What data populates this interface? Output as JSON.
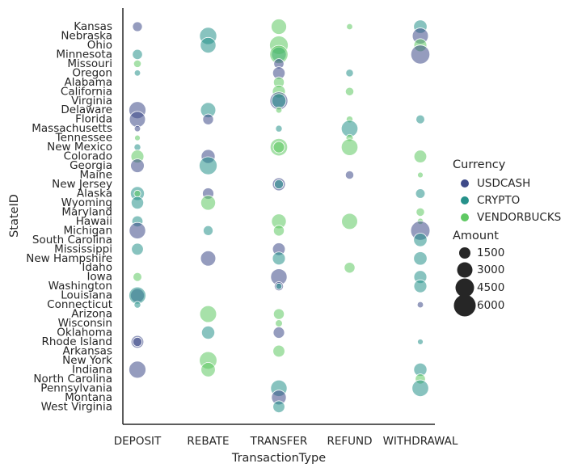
{
  "chart_data": {
    "type": "scatter",
    "xlabel": "TransactionType",
    "ylabel": "StateID",
    "categories_x": [
      "DEPOSIT",
      "REBATE",
      "TRANSFER",
      "REFUND",
      "WITHDRAWAL"
    ],
    "categories_y": [
      "Kansas",
      "Nebraska",
      "Ohio",
      "Minnesota",
      "Missouri",
      "Oregon",
      "Alabama",
      "California",
      "Virginia",
      "Delaware",
      "Florida",
      "Massachusetts",
      "Tennessee",
      "New Mexico",
      "Colorado",
      "Georgia",
      "Maine",
      "New Jersey",
      "Alaska",
      "Wyoming",
      "Maryland",
      "Hawaii",
      "Michigan",
      "South Carolina",
      "Mississippi",
      "New Hampshire",
      "Idaho",
      "Iowa",
      "Washington",
      "Louisiana",
      "Connecticut",
      "Arizona",
      "Wisconsin",
      "Oklahoma",
      "Rhode Island",
      "Arkansas",
      "New York",
      "Indiana",
      "North Carolina",
      "Pennsylvania",
      "Montana",
      "West Virginia"
    ],
    "legend": {
      "hue_title": "Currency",
      "hue": [
        {
          "name": "USDCASH",
          "color": "#3e4a89"
        },
        {
          "name": "CRYPTO",
          "color": "#26918a"
        },
        {
          "name": "VENDORBUCKS",
          "color": "#5fc963"
        }
      ],
      "size_title": "Amount",
      "sizes": [
        1500,
        3000,
        4500,
        6000
      ],
      "placement": "right"
    },
    "grid": false,
    "points": [
      {
        "x": "DEPOSIT",
        "y": "Kansas",
        "currency": "USDCASH",
        "amount": 1500
      },
      {
        "x": "DEPOSIT",
        "y": "Minnesota",
        "currency": "CRYPTO",
        "amount": 1600
      },
      {
        "x": "DEPOSIT",
        "y": "Missouri",
        "currency": "VENDORBUCKS",
        "amount": 900
      },
      {
        "x": "DEPOSIT",
        "y": "Oregon",
        "currency": "CRYPTO",
        "amount": 600
      },
      {
        "x": "DEPOSIT",
        "y": "Delaware",
        "currency": "USDCASH",
        "amount": 4500
      },
      {
        "x": "DEPOSIT",
        "y": "Florida",
        "currency": "USDCASH",
        "amount": 4000
      },
      {
        "x": "DEPOSIT",
        "y": "Massachusetts",
        "currency": "USDCASH",
        "amount": 600
      },
      {
        "x": "DEPOSIT",
        "y": "Tennessee",
        "currency": "VENDORBUCKS",
        "amount": 500
      },
      {
        "x": "DEPOSIT",
        "y": "New Mexico",
        "currency": "CRYPTO",
        "amount": 700
      },
      {
        "x": "DEPOSIT",
        "y": "Colorado",
        "currency": "VENDORBUCKS",
        "amount": 2600
      },
      {
        "x": "DEPOSIT",
        "y": "Georgia",
        "currency": "USDCASH",
        "amount": 2900
      },
      {
        "x": "DEPOSIT",
        "y": "Alaska",
        "currency": "CRYPTO",
        "amount": 3000
      },
      {
        "x": "DEPOSIT",
        "y": "Alaska",
        "currency": "VENDORBUCKS",
        "amount": 700
      },
      {
        "x": "DEPOSIT",
        "y": "Wyoming",
        "currency": "CRYPTO",
        "amount": 2400
      },
      {
        "x": "DEPOSIT",
        "y": "Hawaii",
        "currency": "CRYPTO",
        "amount": 1900
      },
      {
        "x": "DEPOSIT",
        "y": "Michigan",
        "currency": "USDCASH",
        "amount": 4200
      },
      {
        "x": "DEPOSIT",
        "y": "Mississippi",
        "currency": "CRYPTO",
        "amount": 2200
      },
      {
        "x": "DEPOSIT",
        "y": "Iowa",
        "currency": "VENDORBUCKS",
        "amount": 1200
      },
      {
        "x": "DEPOSIT",
        "y": "Louisiana",
        "currency": "USDCASH",
        "amount": 3000
      },
      {
        "x": "DEPOSIT",
        "y": "Louisiana",
        "currency": "CRYPTO",
        "amount": 4500
      },
      {
        "x": "DEPOSIT",
        "y": "Connecticut",
        "currency": "CRYPTO",
        "amount": 700
      },
      {
        "x": "DEPOSIT",
        "y": "Rhode Island",
        "currency": "USDCASH",
        "amount": 2500
      },
      {
        "x": "DEPOSIT",
        "y": "Rhode Island",
        "currency": "USDCASH",
        "amount": 1300
      },
      {
        "x": "DEPOSIT",
        "y": "Indiana",
        "currency": "USDCASH",
        "amount": 4500
      },
      {
        "x": "REBATE",
        "y": "Nebraska",
        "currency": "CRYPTO",
        "amount": 4600
      },
      {
        "x": "REBATE",
        "y": "Ohio",
        "currency": "CRYPTO",
        "amount": 3800
      },
      {
        "x": "REBATE",
        "y": "Delaware",
        "currency": "CRYPTO",
        "amount": 3600
      },
      {
        "x": "REBATE",
        "y": "Florida",
        "currency": "USDCASH",
        "amount": 1800
      },
      {
        "x": "REBATE",
        "y": "Colorado",
        "currency": "USDCASH",
        "amount": 3000
      },
      {
        "x": "REBATE",
        "y": "Georgia",
        "currency": "CRYPTO",
        "amount": 5000
      },
      {
        "x": "REBATE",
        "y": "Alaska",
        "currency": "USDCASH",
        "amount": 2000
      },
      {
        "x": "REBATE",
        "y": "Wyoming",
        "currency": "VENDORBUCKS",
        "amount": 3400
      },
      {
        "x": "REBATE",
        "y": "Michigan",
        "currency": "CRYPTO",
        "amount": 1500
      },
      {
        "x": "REBATE",
        "y": "New Hampshire",
        "currency": "USDCASH",
        "amount": 3600
      },
      {
        "x": "REBATE",
        "y": "Arizona",
        "currency": "VENDORBUCKS",
        "amount": 4400
      },
      {
        "x": "REBATE",
        "y": "Oklahoma",
        "currency": "CRYPTO",
        "amount": 2700
      },
      {
        "x": "REBATE",
        "y": "New York",
        "currency": "VENDORBUCKS",
        "amount": 4800
      },
      {
        "x": "REBATE",
        "y": "Indiana",
        "currency": "VENDORBUCKS",
        "amount": 3200
      },
      {
        "x": "TRANSFER",
        "y": "Kansas",
        "currency": "VENDORBUCKS",
        "amount": 3700
      },
      {
        "x": "TRANSFER",
        "y": "Ohio",
        "currency": "VENDORBUCKS",
        "amount": 5400
      },
      {
        "x": "TRANSFER",
        "y": "Minnesota",
        "currency": "CRYPTO",
        "amount": 3400
      },
      {
        "x": "TRANSFER",
        "y": "Minnesota",
        "currency": "VENDORBUCKS",
        "amount": 5200
      },
      {
        "x": "TRANSFER",
        "y": "Missouri",
        "currency": "USDCASH",
        "amount": 1600
      },
      {
        "x": "TRANSFER",
        "y": "Oregon",
        "currency": "USDCASH",
        "amount": 2400
      },
      {
        "x": "TRANSFER",
        "y": "Alabama",
        "currency": "VENDORBUCKS",
        "amount": 1800
      },
      {
        "x": "TRANSFER",
        "y": "California",
        "currency": "VENDORBUCKS",
        "amount": 2600
      },
      {
        "x": "TRANSFER",
        "y": "Virginia",
        "currency": "USDCASH",
        "amount": 5000
      },
      {
        "x": "TRANSFER",
        "y": "Virginia",
        "currency": "CRYPTO",
        "amount": 3200
      },
      {
        "x": "TRANSFER",
        "y": "Delaware",
        "currency": "VENDORBUCKS",
        "amount": 600
      },
      {
        "x": "TRANSFER",
        "y": "Massachusetts",
        "currency": "CRYPTO",
        "amount": 700
      },
      {
        "x": "TRANSFER",
        "y": "New Mexico",
        "currency": "VENDORBUCKS",
        "amount": 4700
      },
      {
        "x": "TRANSFER",
        "y": "New Mexico",
        "currency": "VENDORBUCKS",
        "amount": 2000
      },
      {
        "x": "TRANSFER",
        "y": "New Jersey",
        "currency": "USDCASH",
        "amount": 2600
      },
      {
        "x": "TRANSFER",
        "y": "New Jersey",
        "currency": "CRYPTO",
        "amount": 1300
      },
      {
        "x": "TRANSFER",
        "y": "Hawaii",
        "currency": "VENDORBUCKS",
        "amount": 3400
      },
      {
        "x": "TRANSFER",
        "y": "Michigan",
        "currency": "VENDORBUCKS",
        "amount": 1800
      },
      {
        "x": "TRANSFER",
        "y": "Mississippi",
        "currency": "USDCASH",
        "amount": 2500
      },
      {
        "x": "TRANSFER",
        "y": "New Hampshire",
        "currency": "CRYPTO",
        "amount": 2600
      },
      {
        "x": "TRANSFER",
        "y": "Iowa",
        "currency": "USDCASH",
        "amount": 4200
      },
      {
        "x": "TRANSFER",
        "y": "Washington",
        "currency": "USDCASH",
        "amount": 1300
      },
      {
        "x": "TRANSFER",
        "y": "Washington",
        "currency": "CRYPTO",
        "amount": 600
      },
      {
        "x": "TRANSFER",
        "y": "Arizona",
        "currency": "VENDORBUCKS",
        "amount": 1800
      },
      {
        "x": "TRANSFER",
        "y": "Wisconsin",
        "currency": "VENDORBUCKS",
        "amount": 800
      },
      {
        "x": "TRANSFER",
        "y": "Oklahoma",
        "currency": "USDCASH",
        "amount": 2000
      },
      {
        "x": "TRANSFER",
        "y": "Arkansas",
        "currency": "VENDORBUCKS",
        "amount": 2200
      },
      {
        "x": "TRANSFER",
        "y": "Pennsylvania",
        "currency": "CRYPTO",
        "amount": 4200
      },
      {
        "x": "TRANSFER",
        "y": "Montana",
        "currency": "USDCASH",
        "amount": 3400
      },
      {
        "x": "TRANSFER",
        "y": "West Virginia",
        "currency": "CRYPTO",
        "amount": 2200
      },
      {
        "x": "REFUND",
        "y": "Kansas",
        "currency": "VENDORBUCKS",
        "amount": 600
      },
      {
        "x": "REFUND",
        "y": "Oregon",
        "currency": "CRYPTO",
        "amount": 900
      },
      {
        "x": "REFUND",
        "y": "California",
        "currency": "VENDORBUCKS",
        "amount": 1100
      },
      {
        "x": "REFUND",
        "y": "Florida",
        "currency": "VENDORBUCKS",
        "amount": 700
      },
      {
        "x": "REFUND",
        "y": "Massachusetts",
        "currency": "CRYPTO",
        "amount": 4300
      },
      {
        "x": "REFUND",
        "y": "Tennessee",
        "currency": "VENDORBUCKS",
        "amount": 800
      },
      {
        "x": "REFUND",
        "y": "New Mexico",
        "currency": "VENDORBUCKS",
        "amount": 4300
      },
      {
        "x": "REFUND",
        "y": "Maine",
        "currency": "USDCASH",
        "amount": 1100
      },
      {
        "x": "REFUND",
        "y": "Hawaii",
        "currency": "VENDORBUCKS",
        "amount": 4000
      },
      {
        "x": "REFUND",
        "y": "Idaho",
        "currency": "VENDORBUCKS",
        "amount": 1800
      },
      {
        "x": "WITHDRAWAL",
        "y": "Kansas",
        "currency": "CRYPTO",
        "amount": 2800
      },
      {
        "x": "WITHDRAWAL",
        "y": "Nebraska",
        "currency": "USDCASH",
        "amount": 4000
      },
      {
        "x": "WITHDRAWAL",
        "y": "Ohio",
        "currency": "VENDORBUCKS",
        "amount": 2600
      },
      {
        "x": "WITHDRAWAL",
        "y": "Minnesota",
        "currency": "USDCASH",
        "amount": 5600
      },
      {
        "x": "WITHDRAWAL",
        "y": "Florida",
        "currency": "CRYPTO",
        "amount": 1200
      },
      {
        "x": "WITHDRAWAL",
        "y": "Colorado",
        "currency": "VENDORBUCKS",
        "amount": 2500
      },
      {
        "x": "WITHDRAWAL",
        "y": "Maine",
        "currency": "VENDORBUCKS",
        "amount": 500
      },
      {
        "x": "WITHDRAWAL",
        "y": "Alaska",
        "currency": "CRYPTO",
        "amount": 1400
      },
      {
        "x": "WITHDRAWAL",
        "y": "Maryland",
        "currency": "VENDORBUCKS",
        "amount": 1100
      },
      {
        "x": "WITHDRAWAL",
        "y": "Hawaii",
        "currency": "VENDORBUCKS",
        "amount": 600
      },
      {
        "x": "WITHDRAWAL",
        "y": "Michigan",
        "currency": "USDCASH",
        "amount": 5800
      },
      {
        "x": "WITHDRAWAL",
        "y": "South Carolina",
        "currency": "CRYPTO",
        "amount": 2800
      },
      {
        "x": "WITHDRAWAL",
        "y": "New Hampshire",
        "currency": "CRYPTO",
        "amount": 2800
      },
      {
        "x": "WITHDRAWAL",
        "y": "Iowa",
        "currency": "CRYPTO",
        "amount": 2600
      },
      {
        "x": "WITHDRAWAL",
        "y": "Washington",
        "currency": "CRYPTO",
        "amount": 2600
      },
      {
        "x": "WITHDRAWAL",
        "y": "Connecticut",
        "currency": "USDCASH",
        "amount": 600
      },
      {
        "x": "WITHDRAWAL",
        "y": "Rhode Island",
        "currency": "CRYPTO",
        "amount": 500
      },
      {
        "x": "WITHDRAWAL",
        "y": "Indiana",
        "currency": "CRYPTO",
        "amount": 2700
      },
      {
        "x": "WITHDRAWAL",
        "y": "North Carolina",
        "currency": "VENDORBUCKS",
        "amount": 1600
      },
      {
        "x": "WITHDRAWAL",
        "y": "Pennsylvania",
        "currency": "CRYPTO",
        "amount": 4300
      }
    ]
  }
}
